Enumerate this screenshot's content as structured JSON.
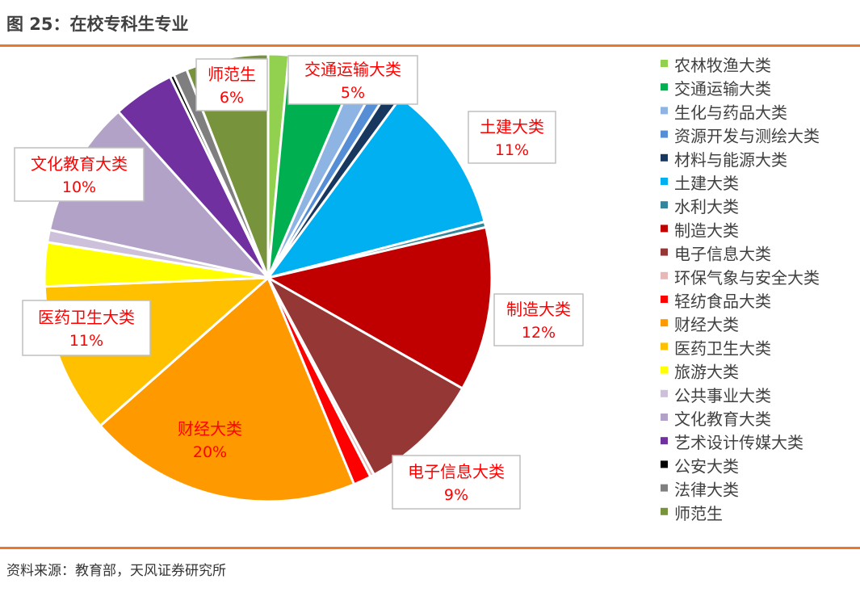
{
  "figure": {
    "title": "图 25：在校专科生专业",
    "source": "资料来源：教育部，天风证券研究所"
  },
  "chart_data": {
    "type": "pie",
    "categories": [
      "农林牧渔大类",
      "交通运输大类",
      "生化与药品大类",
      "资源开发与测绘大类",
      "材料与能源大类",
      "土建大类",
      "水利大类",
      "制造大类",
      "电子信息大类",
      "环保气象与安全大类",
      "轻纺食品大类",
      "财经大类",
      "医药卫生大类",
      "旅游大类",
      "公共事业大类",
      "文化教育大类",
      "艺术设计传媒大类",
      "公安大类",
      "法律大类",
      "师范生"
    ],
    "values": [
      1.5,
      5.0,
      1.7,
      1.0,
      1.0,
      11.0,
      0.4,
      12.0,
      9.0,
      0.3,
      1.3,
      20.0,
      11.0,
      3.2,
      0.9,
      10.0,
      4.5,
      0.3,
      1.0,
      6.0
    ],
    "colors": [
      "#92D050",
      "#00B050",
      "#8DB4E2",
      "#558ED5",
      "#17375E",
      "#00B0F0",
      "#31859C",
      "#C00000",
      "#953735",
      "#E6B9B8",
      "#FF0000",
      "#FF9900",
      "#FFC000",
      "#FFFF00",
      "#CCC0DA",
      "#B3A2C7",
      "#7030A0",
      "#000000",
      "#7F7F7F",
      "#77933C"
    ],
    "data_labels": [
      {
        "category": "交通运输大类",
        "name": "交通运输大类",
        "pct": "5%"
      },
      {
        "category": "土建大类",
        "name": "土建大类",
        "pct": "11%"
      },
      {
        "category": "制造大类",
        "name": "制造大类",
        "pct": "12%"
      },
      {
        "category": "电子信息大类",
        "name": "电子信息大类",
        "pct": "9%"
      },
      {
        "category": "财经大类",
        "name": "财经大类",
        "pct": "20%"
      },
      {
        "category": "医药卫生大类",
        "name": "医药卫生大类",
        "pct": "11%"
      },
      {
        "category": "文化教育大类",
        "name": "文化教育大类",
        "pct": "10%"
      },
      {
        "category": "师范生",
        "name": "师范生",
        "pct": "6%"
      }
    ],
    "label_color": "#FF0000",
    "legend_position": "right"
  }
}
